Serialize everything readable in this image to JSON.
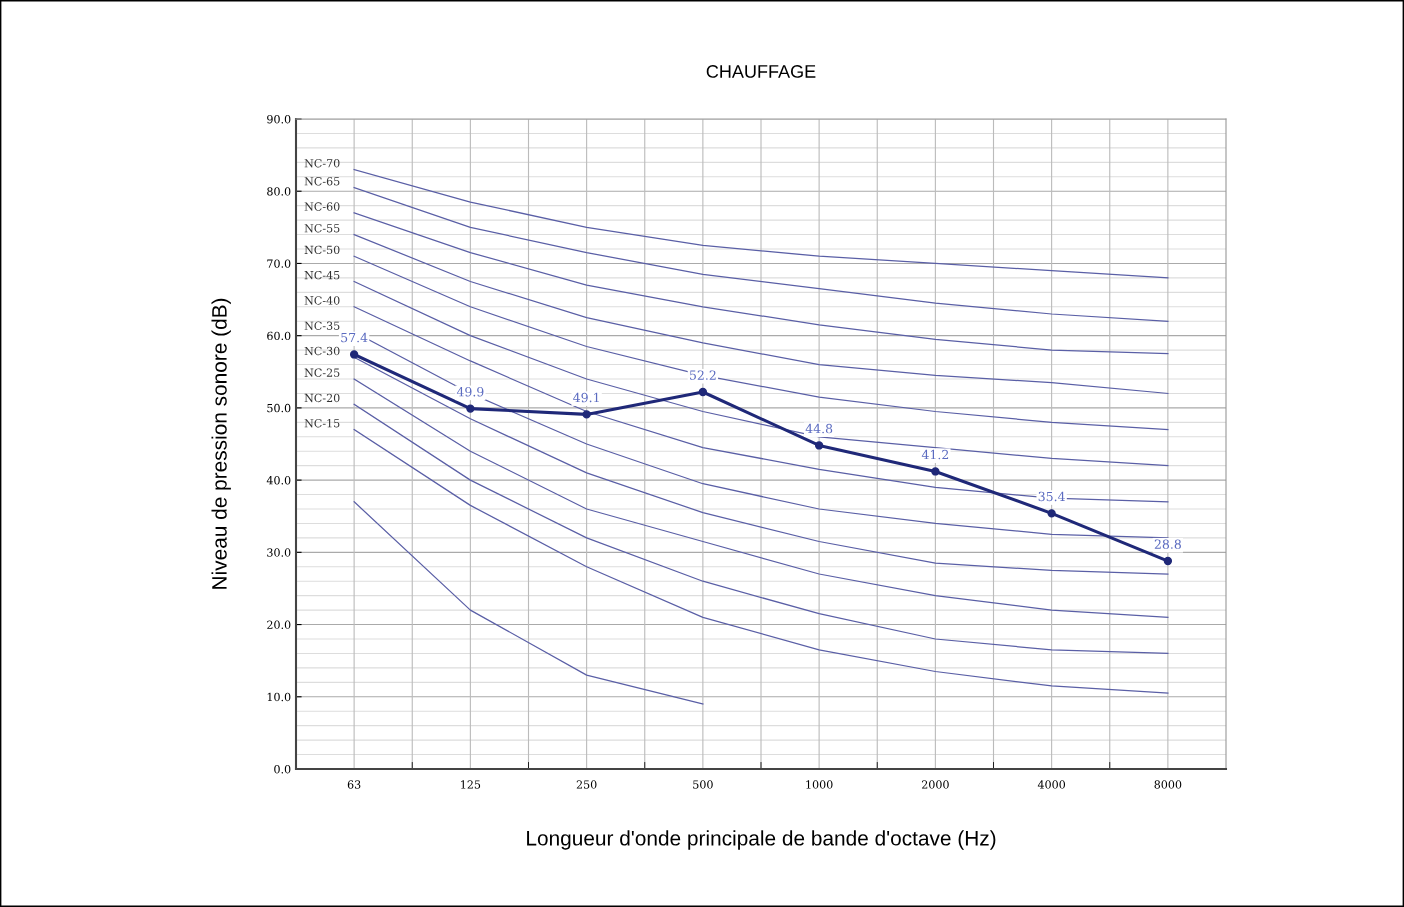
{
  "chart_data": {
    "type": "line",
    "title": "CHAUFFAGE",
    "xlabel": "Longueur d'onde principale de bande d'octave (Hz)",
    "ylabel": "Niveau de pression sonore (dB)",
    "categories": [
      "63",
      "125",
      "250",
      "500",
      "1000",
      "2000",
      "4000",
      "8000"
    ],
    "ylim": [
      0,
      90
    ],
    "yticks": [
      {
        "value": 0,
        "label": "0.0"
      },
      {
        "value": 10,
        "label": "10.0"
      },
      {
        "value": 20,
        "label": "20.0"
      },
      {
        "value": 30,
        "label": "30.0"
      },
      {
        "value": 40,
        "label": "40.0"
      },
      {
        "value": 50,
        "label": "50.0"
      },
      {
        "value": 60,
        "label": "60.0"
      },
      {
        "value": 70,
        "label": "70.0"
      },
      {
        "value": 80,
        "label": "80.0"
      },
      {
        "value": 90,
        "label": "90.0"
      }
    ],
    "grid": true,
    "legend": false,
    "marker": "none",
    "series": [
      {
        "name": "NC-70",
        "color": "#5a5fa6",
        "values": [
          83,
          78.5,
          75,
          72.5,
          71,
          70,
          69,
          68
        ]
      },
      {
        "name": "NC-65",
        "color": "#5a5fa6",
        "values": [
          80.5,
          75,
          71.5,
          68.5,
          66.5,
          64.5,
          63,
          62
        ]
      },
      {
        "name": "NC-60",
        "color": "#5a5fa6",
        "values": [
          77,
          71.5,
          67,
          64,
          61.5,
          59.5,
          58,
          57.5
        ]
      },
      {
        "name": "NC-55",
        "color": "#5a5fa6",
        "values": [
          74,
          67.5,
          62.5,
          59,
          56,
          54.5,
          53.5,
          52
        ]
      },
      {
        "name": "NC-50",
        "color": "#5a5fa6",
        "values": [
          71,
          64,
          58.5,
          54.5,
          51.5,
          49.5,
          48,
          47
        ]
      },
      {
        "name": "NC-45",
        "color": "#5a5fa6",
        "values": [
          67.5,
          60,
          54,
          49.5,
          46,
          44.5,
          43,
          42
        ]
      },
      {
        "name": "NC-40",
        "color": "#5a5fa6",
        "values": [
          64,
          56.5,
          49.5,
          44.5,
          41.5,
          39,
          37.5,
          37
        ]
      },
      {
        "name": "NC-35",
        "color": "#5a5fa6",
        "values": [
          60.5,
          52,
          45,
          39.5,
          36,
          34,
          32.5,
          32
        ]
      },
      {
        "name": "NC-30",
        "color": "#5a5fa6",
        "values": [
          57,
          48.5,
          41,
          35.5,
          31.5,
          28.5,
          27.5,
          27
        ]
      },
      {
        "name": "NC-25",
        "color": "#5a5fa6",
        "values": [
          54,
          44,
          36,
          31.5,
          27,
          24,
          22,
          21
        ]
      },
      {
        "name": "NC-20",
        "color": "#5a5fa6",
        "values": [
          50.5,
          40,
          32,
          26,
          21.5,
          18,
          16.5,
          16
        ]
      },
      {
        "name": "NC-15",
        "color": "#5a5fa6",
        "values": [
          47,
          36.5,
          28,
          21,
          16.5,
          13.5,
          11.5,
          10.5
        ]
      },
      {
        "color": "#5a5fa6",
        "values": [
          37,
          22,
          13,
          9,
          null,
          null,
          null,
          null
        ]
      },
      {
        "color": "#1f2878",
        "values": [
          57.4,
          49.9,
          49.1,
          52.2,
          44.8,
          41.2,
          35.4,
          28.8
        ],
        "marker": "circle",
        "data_labels": true
      }
    ]
  }
}
